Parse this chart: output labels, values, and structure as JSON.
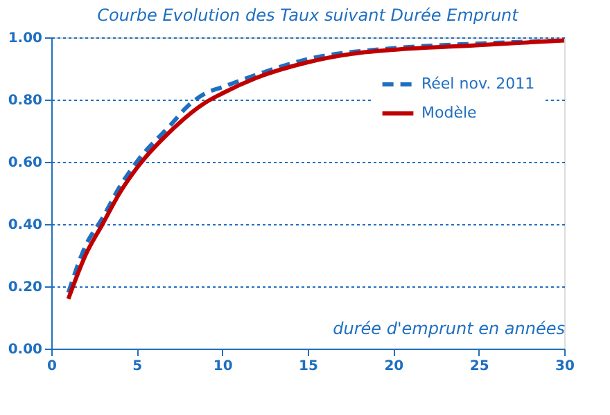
{
  "chart_data": {
    "type": "line",
    "title": "Courbe Evolution des Taux suivant Durée Emprunt",
    "xlabel": "durée d'emprunt en années",
    "series": [
      {
        "name": "Réel nov. 2011",
        "color": "#1f6fc0",
        "line_style": "dashed",
        "x": [
          1,
          2,
          3,
          4,
          5,
          7,
          8,
          9,
          10,
          12,
          15,
          20,
          25,
          30
        ],
        "values": [
          0.18,
          0.33,
          0.42,
          0.52,
          0.6,
          0.72,
          0.78,
          0.82,
          0.84,
          0.88,
          0.93,
          0.965,
          0.98,
          0.99
        ]
      },
      {
        "name": "Modèle",
        "color": "#c00000",
        "line_style": "solid",
        "x": [
          1,
          2,
          3,
          4,
          5,
          7,
          9,
          10,
          12,
          15,
          18,
          20,
          25,
          30
        ],
        "values": [
          0.16,
          0.3,
          0.4,
          0.5,
          0.58,
          0.7,
          0.79,
          0.82,
          0.87,
          0.92,
          0.95,
          0.96,
          0.975,
          0.99
        ]
      }
    ],
    "xlim": [
      0,
      30
    ],
    "xticks": [
      0,
      5,
      10,
      15,
      20,
      25,
      30
    ],
    "ylim": [
      0,
      1
    ],
    "yticks": [
      {
        "value": 0,
        "label": "0.00"
      },
      {
        "value": 0.2,
        "label": "0.20"
      },
      {
        "value": 0.4,
        "label": "0.40"
      },
      {
        "value": 0.6,
        "label": "0.60"
      },
      {
        "value": 0.8,
        "label": "0.80"
      },
      {
        "value": 1,
        "label": "1.00"
      }
    ],
    "grid": "y",
    "legend": "top right",
    "marker": "none"
  }
}
